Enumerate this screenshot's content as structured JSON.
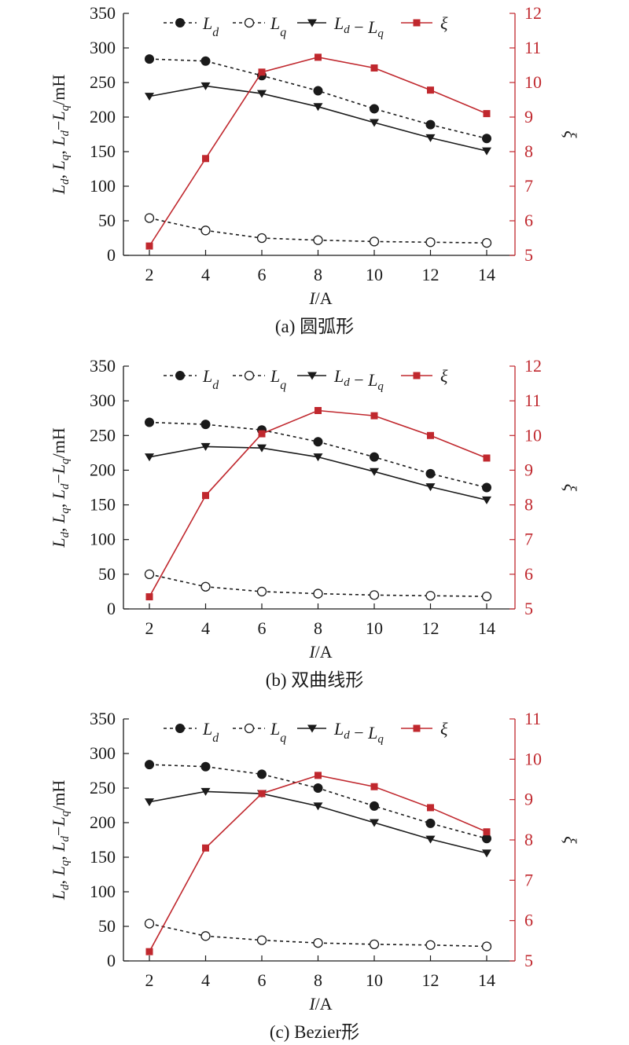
{
  "figure": {
    "y2_label": "ξ",
    "colors": {
      "black_series": "#1a1a1a",
      "xi_series": "#c0282e",
      "axis": "#1a1a1a",
      "right_axis": "#c0282e"
    }
  },
  "chart_data": [
    {
      "type": "line",
      "caption": "(a) 圆弧形",
      "x": [
        2,
        4,
        6,
        8,
        10,
        12,
        14
      ],
      "xlabel": "I/A",
      "ylabel": "Ld, Lq, Ld−Lq/mH",
      "ylim": [
        0,
        350
      ],
      "y_ticks": [
        0,
        50,
        100,
        150,
        200,
        250,
        300,
        350
      ],
      "y2lim": [
        5,
        12
      ],
      "y2_ticks": [
        5,
        6,
        7,
        8,
        9,
        10,
        11,
        12
      ],
      "x_ticks": [
        2,
        4,
        6,
        8,
        10,
        12,
        14
      ],
      "legend_placement": "top",
      "series": [
        {
          "name": "Ld",
          "values": [
            284,
            281,
            260,
            238,
            212,
            189,
            169
          ]
        },
        {
          "name": "Lq",
          "values": [
            54,
            36,
            25,
            22,
            20,
            19,
            18
          ]
        },
        {
          "name": "Ld−Lq",
          "values": [
            230,
            245,
            234,
            215,
            192,
            170,
            151
          ]
        },
        {
          "name": "ξ",
          "axis": "right",
          "values": [
            5.27,
            7.8,
            10.3,
            10.73,
            10.42,
            9.78,
            9.1
          ]
        }
      ]
    },
    {
      "type": "line",
      "caption": "(b) 双曲线形",
      "x": [
        2,
        4,
        6,
        8,
        10,
        12,
        14
      ],
      "xlabel": "I/A",
      "ylabel": "Ld, Lq, Ld−Lq/mH",
      "ylim": [
        0,
        350
      ],
      "y_ticks": [
        0,
        50,
        100,
        150,
        200,
        250,
        300,
        350
      ],
      "y2lim": [
        5,
        12
      ],
      "y2_ticks": [
        5,
        6,
        7,
        8,
        9,
        10,
        11,
        12
      ],
      "x_ticks": [
        2,
        4,
        6,
        8,
        10,
        12,
        14
      ],
      "legend_placement": "top",
      "series": [
        {
          "name": "Ld",
          "values": [
            269,
            266,
            258,
            241,
            219,
            195,
            175
          ]
        },
        {
          "name": "Lq",
          "values": [
            50,
            32,
            25,
            22,
            20,
            19,
            18
          ]
        },
        {
          "name": "Ld−Lq",
          "values": [
            219,
            234,
            232,
            219,
            198,
            176,
            157
          ]
        },
        {
          "name": "ξ",
          "axis": "right",
          "values": [
            5.35,
            8.27,
            10.05,
            10.72,
            10.57,
            10.0,
            9.35
          ]
        }
      ]
    },
    {
      "type": "line",
      "caption": "(c) Bezier形",
      "x": [
        2,
        4,
        6,
        8,
        10,
        12,
        14
      ],
      "xlabel": "I/A",
      "ylabel": "Ld, Lq, Ld−Lq/mH",
      "ylim": [
        0,
        350
      ],
      "y_ticks": [
        0,
        50,
        100,
        150,
        200,
        250,
        300,
        350
      ],
      "y2lim": [
        5,
        11
      ],
      "y2_ticks": [
        5,
        6,
        7,
        8,
        9,
        10,
        11
      ],
      "x_ticks": [
        2,
        4,
        6,
        8,
        10,
        12,
        14
      ],
      "legend_placement": "top",
      "series": [
        {
          "name": "Ld",
          "values": [
            284,
            281,
            270,
            250,
            224,
            199,
            177
          ]
        },
        {
          "name": "Lq",
          "values": [
            54,
            36,
            30,
            26,
            24,
            23,
            21
          ]
        },
        {
          "name": "Ld−Lq",
          "values": [
            230,
            245,
            242,
            224,
            200,
            176,
            156
          ]
        },
        {
          "name": "ξ",
          "axis": "right",
          "values": [
            5.23,
            7.8,
            9.15,
            9.6,
            9.32,
            8.8,
            8.2
          ]
        }
      ]
    }
  ]
}
